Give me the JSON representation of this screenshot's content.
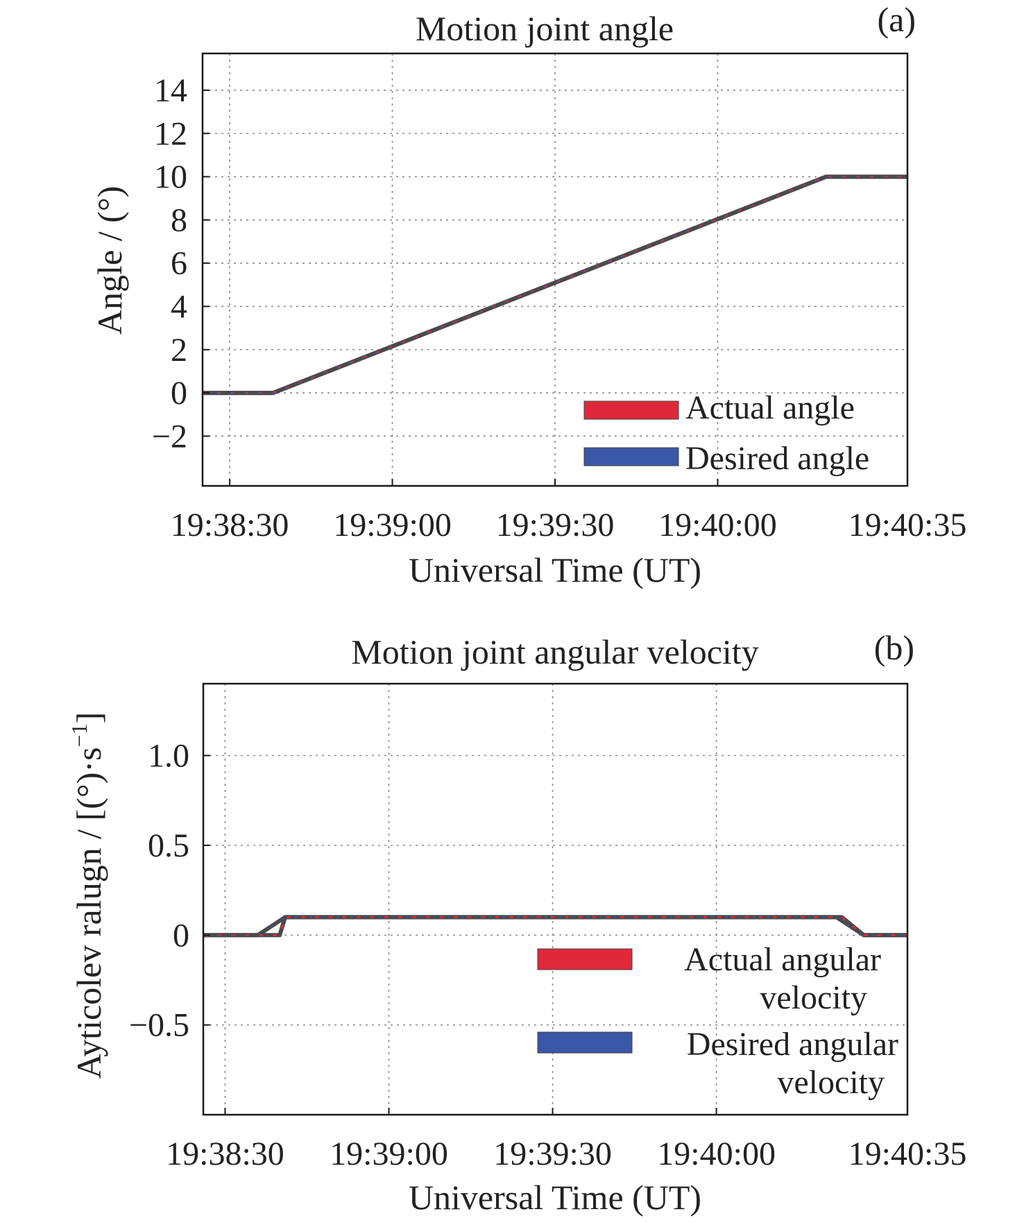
{
  "chart_data": [
    {
      "id": "a",
      "type": "line",
      "title": "Motion joint angle",
      "panel_label": "(a)",
      "xlabel": "Universal Time (UT)",
      "ylabel": "Angle / (°)",
      "xlim": [
        "19:38:25",
        "19:40:35"
      ],
      "ylim": [
        -4.3,
        15.7
      ],
      "xticks": [
        "19:38:30",
        "19:39:00",
        "19:39:30",
        "19:40:00",
        "19:40:35"
      ],
      "yticks": [
        -2,
        0,
        2,
        4,
        6,
        8,
        10,
        12,
        14
      ],
      "ytick_labels": [
        "−2",
        "0",
        "2",
        "4",
        "6",
        "8",
        "10",
        "12",
        "14"
      ],
      "grid": true,
      "legend_position": "bottom-right",
      "series": [
        {
          "name": "Actual angle",
          "color": "#e0283c",
          "x": [
            "19:38:25",
            "19:38:38",
            "19:40:20",
            "19:40:35"
          ],
          "y": [
            0,
            0,
            10,
            10
          ]
        },
        {
          "name": "Desired angle",
          "color": "#3a56a6",
          "x": [
            "19:38:25",
            "19:38:38",
            "19:40:20",
            "19:40:35"
          ],
          "y": [
            0,
            0,
            10,
            10
          ]
        }
      ]
    },
    {
      "id": "b",
      "type": "line",
      "title": "Motion joint angular velocity",
      "panel_label": "(b)",
      "xlabel": "Universal Time (UT)",
      "ylabel": "Ayticolev ralugn / [(°)·s",
      "ylabel_superscript": "−1",
      "ylabel_suffix": "]",
      "xlim": [
        "19:38:26",
        "19:40:35"
      ],
      "ylim": [
        -1.0,
        1.4
      ],
      "xticks": [
        "19:38:30",
        "19:39:00",
        "19:39:30",
        "19:40:00",
        "19:40:35"
      ],
      "yticks": [
        -0.5,
        0,
        0.5,
        1.0
      ],
      "ytick_labels": [
        "−0.5",
        "0",
        "0.5",
        "1.0"
      ],
      "grid": true,
      "legend_position": "bottom-right",
      "series": [
        {
          "name": "Actual angular velocity",
          "color": "#e0283c",
          "x": [
            "19:38:26",
            "19:38:36",
            "19:38:40",
            "19:38:41",
            "19:40:23",
            "19:40:27",
            "19:40:35"
          ],
          "y": [
            0,
            0,
            0,
            0.1,
            0.1,
            0,
            0
          ]
        },
        {
          "name": "Desired angular velocity",
          "color": "#3a56a6",
          "x": [
            "19:38:26",
            "19:38:36",
            "19:38:41",
            "19:40:22",
            "19:40:27",
            "19:40:35"
          ],
          "y": [
            0,
            0,
            0.1,
            0.1,
            0,
            0
          ]
        }
      ]
    }
  ]
}
